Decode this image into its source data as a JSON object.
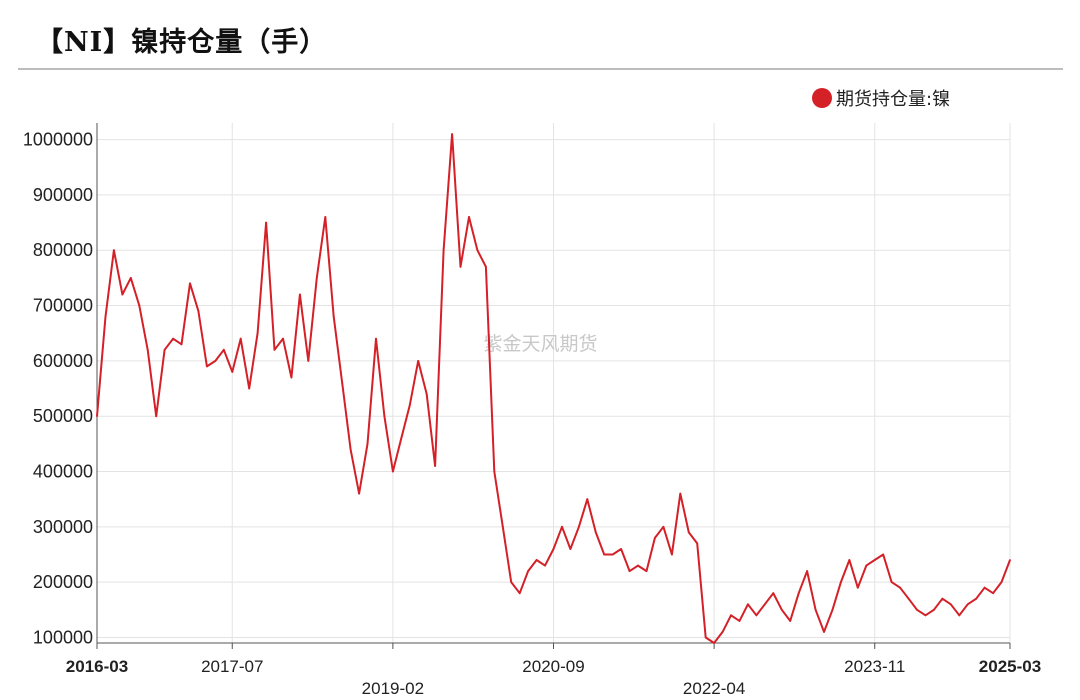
{
  "title": "【NI】镍持仓量（手）",
  "watermark": "紫金天风期货",
  "chart_data": {
    "type": "line",
    "title": "【NI】镍持仓量（手）",
    "xlabel": "",
    "ylabel": "",
    "ylim": [
      90000,
      1030000
    ],
    "xlim": [
      "2016-03",
      "2025-03"
    ],
    "grid": true,
    "legend_position": "top-right",
    "y_ticks": [
      100000,
      200000,
      300000,
      400000,
      500000,
      600000,
      700000,
      800000,
      900000,
      1000000
    ],
    "x_ticks": [
      {
        "date": "2016-03",
        "label": "2016-03",
        "bold": true,
        "row": 1
      },
      {
        "date": "2017-07",
        "label": "2017-07",
        "bold": false,
        "row": 1
      },
      {
        "date": "2019-02",
        "label": "2019-02",
        "bold": false,
        "row": 2
      },
      {
        "date": "2020-09",
        "label": "2020-09",
        "bold": false,
        "row": 1
      },
      {
        "date": "2022-04",
        "label": "2022-04",
        "bold": false,
        "row": 2
      },
      {
        "date": "2023-11",
        "label": "2023-11",
        "bold": false,
        "row": 1
      },
      {
        "date": "2025-03",
        "label": "2025-03",
        "bold": true,
        "row": 1
      }
    ],
    "series": [
      {
        "name": "期货持仓量:镍",
        "color": "#d42027",
        "x": [
          "2016-03",
          "2016-04",
          "2016-05",
          "2016-06",
          "2016-07",
          "2016-08",
          "2016-09",
          "2016-10",
          "2016-11",
          "2016-12",
          "2017-01",
          "2017-02",
          "2017-03",
          "2017-04",
          "2017-05",
          "2017-06",
          "2017-07",
          "2017-08",
          "2017-09",
          "2017-10",
          "2017-11",
          "2017-12",
          "2018-01",
          "2018-02",
          "2018-03",
          "2018-04",
          "2018-05",
          "2018-06",
          "2018-07",
          "2018-08",
          "2018-09",
          "2018-10",
          "2018-11",
          "2018-12",
          "2019-01",
          "2019-02",
          "2019-03",
          "2019-04",
          "2019-05",
          "2019-06",
          "2019-07",
          "2019-08",
          "2019-09",
          "2019-10",
          "2019-11",
          "2019-12",
          "2020-01",
          "2020-02",
          "2020-03",
          "2020-04",
          "2020-05",
          "2020-06",
          "2020-07",
          "2020-08",
          "2020-09",
          "2020-10",
          "2020-11",
          "2020-12",
          "2021-01",
          "2021-02",
          "2021-03",
          "2021-04",
          "2021-05",
          "2021-06",
          "2021-07",
          "2021-08",
          "2021-09",
          "2021-10",
          "2021-11",
          "2021-12",
          "2022-01",
          "2022-02",
          "2022-03",
          "2022-04",
          "2022-05",
          "2022-06",
          "2022-07",
          "2022-08",
          "2022-09",
          "2022-10",
          "2022-11",
          "2022-12",
          "2023-01",
          "2023-02",
          "2023-03",
          "2023-04",
          "2023-05",
          "2023-06",
          "2023-07",
          "2023-08",
          "2023-09",
          "2023-10",
          "2023-11",
          "2023-12",
          "2024-01",
          "2024-02",
          "2024-03",
          "2024-04",
          "2024-05",
          "2024-06",
          "2024-07",
          "2024-08",
          "2024-09",
          "2024-10",
          "2024-11",
          "2024-12",
          "2025-01",
          "2025-02",
          "2025-03"
        ],
        "values": [
          500000,
          680000,
          800000,
          720000,
          750000,
          700000,
          620000,
          500000,
          620000,
          640000,
          630000,
          740000,
          690000,
          590000,
          600000,
          620000,
          580000,
          640000,
          550000,
          650000,
          850000,
          620000,
          640000,
          570000,
          720000,
          600000,
          750000,
          860000,
          680000,
          560000,
          440000,
          360000,
          450000,
          640000,
          500000,
          400000,
          460000,
          520000,
          600000,
          540000,
          410000,
          800000,
          1010000,
          770000,
          860000,
          800000,
          770000,
          400000,
          300000,
          200000,
          180000,
          220000,
          240000,
          230000,
          260000,
          300000,
          260000,
          300000,
          350000,
          290000,
          250000,
          250000,
          260000,
          220000,
          230000,
          220000,
          280000,
          300000,
          250000,
          360000,
          290000,
          270000,
          100000,
          90000,
          110000,
          140000,
          130000,
          160000,
          140000,
          160000,
          180000,
          150000,
          130000,
          180000,
          220000,
          150000,
          110000,
          150000,
          200000,
          240000,
          190000,
          230000,
          240000,
          250000,
          200000,
          190000,
          170000,
          150000,
          140000,
          150000,
          170000,
          160000,
          140000,
          160000,
          170000,
          190000,
          180000,
          200000,
          240000
        ]
      }
    ]
  }
}
